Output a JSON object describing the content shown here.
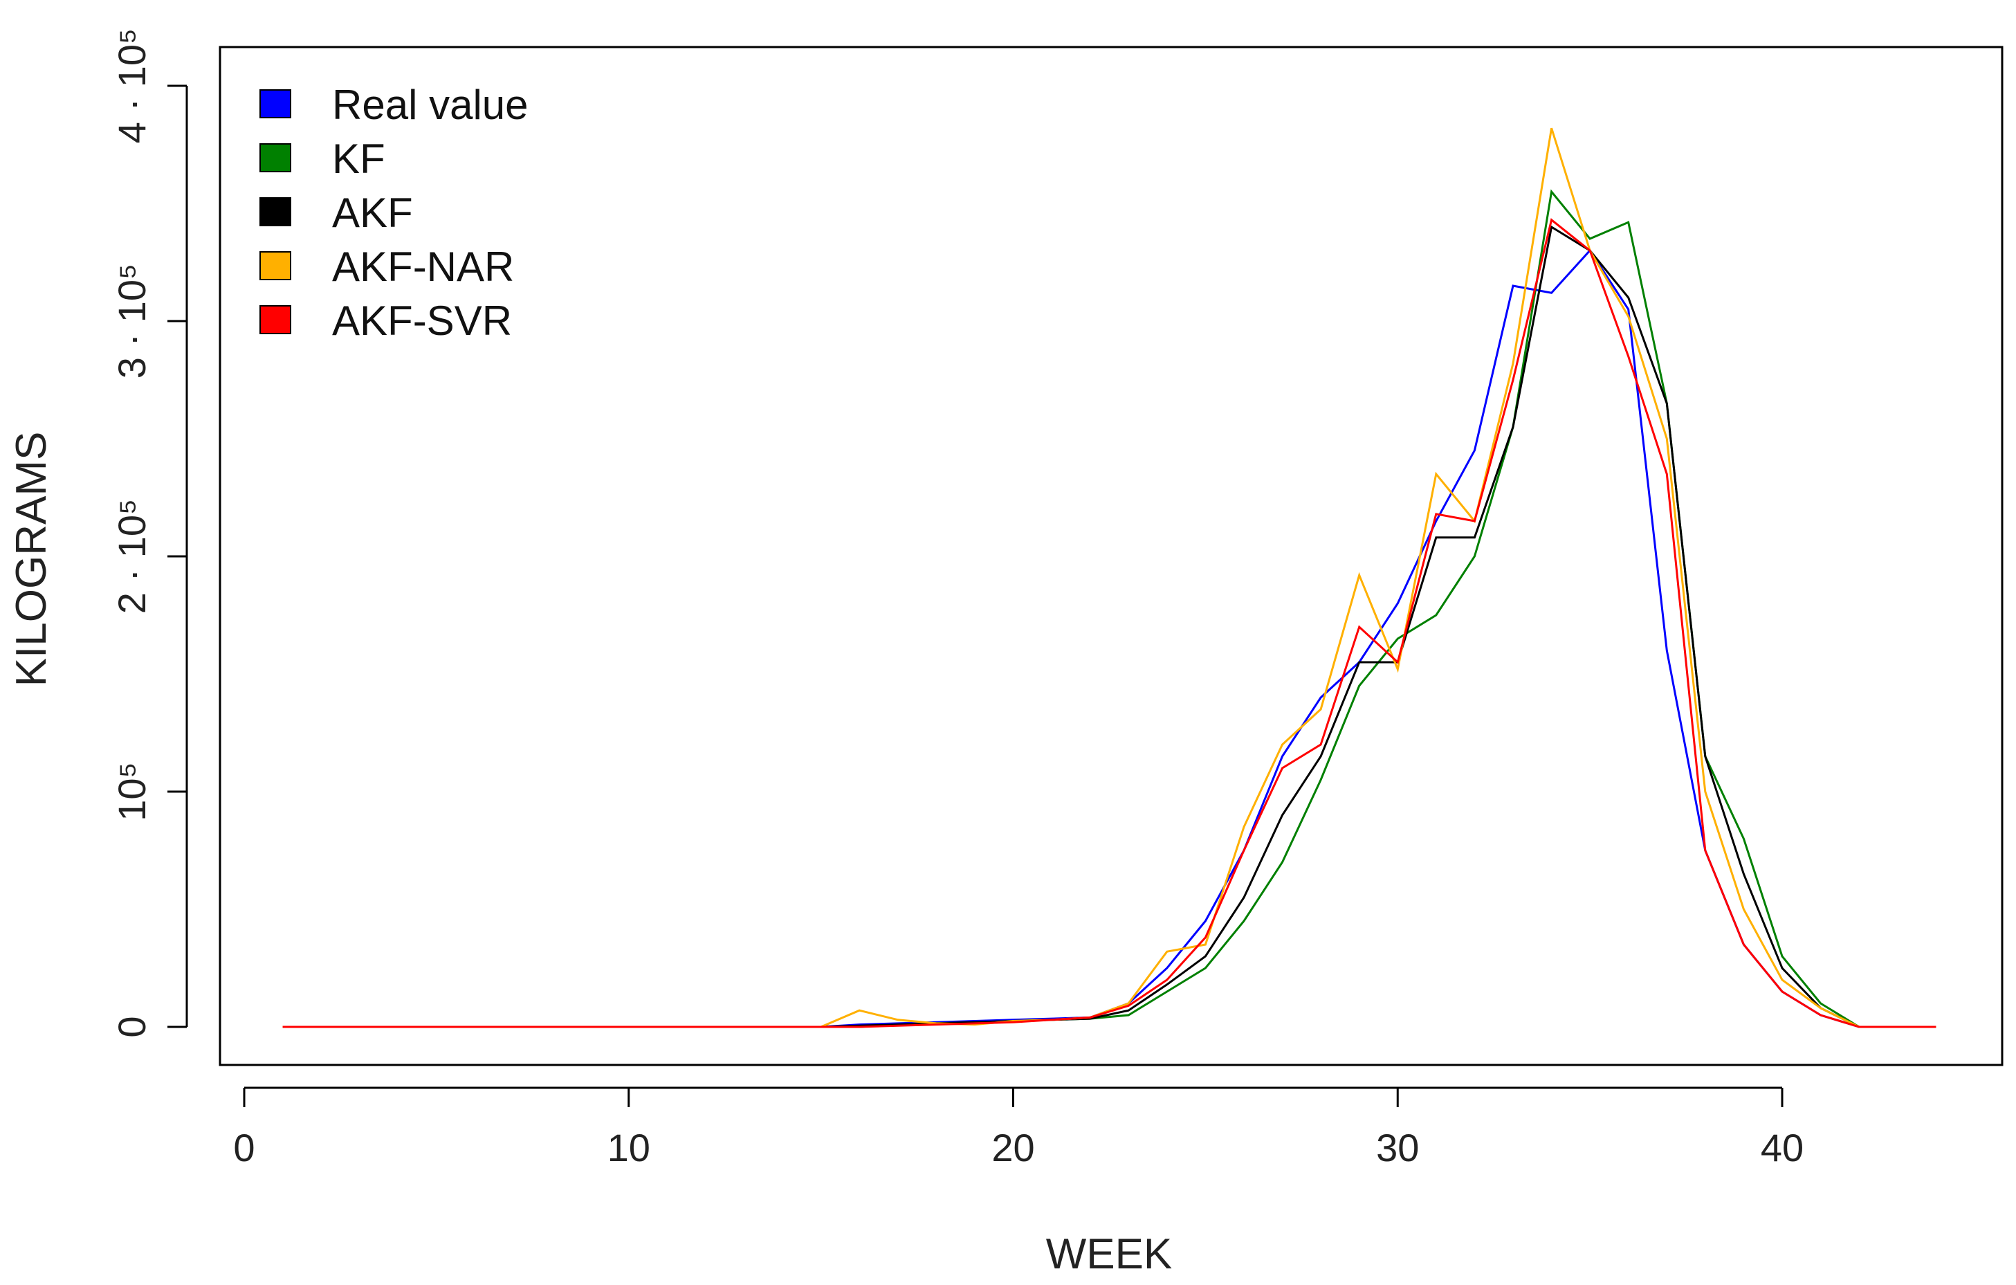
{
  "chart_data": {
    "type": "line",
    "title": "",
    "xlabel": "WEEK",
    "ylabel": "KILOGRAMS",
    "xlim": [
      0,
      45
    ],
    "ylim": [
      0,
      400000
    ],
    "x_ticks": [
      {
        "value": 0,
        "label": "0"
      },
      {
        "value": 10,
        "label": "10"
      },
      {
        "value": 20,
        "label": "20"
      },
      {
        "value": 30,
        "label": "30"
      },
      {
        "value": 40,
        "label": "40"
      }
    ],
    "y_ticks": [
      {
        "value": 0,
        "label": "0"
      },
      {
        "value": 100000,
        "label": "10⁵"
      },
      {
        "value": 200000,
        "label": "2 · 10⁵"
      },
      {
        "value": 300000,
        "label": "3 · 10⁵"
      },
      {
        "value": 400000,
        "label": "4 · 10⁵"
      }
    ],
    "legend_position": "top-left",
    "x": [
      1,
      2,
      3,
      4,
      5,
      6,
      7,
      8,
      9,
      10,
      11,
      12,
      13,
      14,
      15,
      16,
      17,
      18,
      19,
      20,
      21,
      22,
      23,
      24,
      25,
      26,
      27,
      28,
      29,
      30,
      31,
      32,
      33,
      34,
      35,
      36,
      37,
      38,
      39,
      40,
      41,
      42,
      43,
      44
    ],
    "series": [
      {
        "name": "Real value",
        "color": "#0000ff",
        "values": [
          0,
          0,
          0,
          0,
          0,
          0,
          0,
          0,
          0,
          0,
          0,
          0,
          0,
          0,
          0,
          1000,
          1500,
          2000,
          2500,
          3000,
          3500,
          4000,
          10000,
          25000,
          45000,
          75000,
          115000,
          140000,
          155000,
          180000,
          215000,
          245000,
          315000,
          312000,
          330000,
          305000,
          160000,
          75000,
          35000,
          15000,
          5000,
          0,
          0,
          0
        ]
      },
      {
        "name": "KF",
        "color": "#008000",
        "values": [
          0,
          0,
          0,
          0,
          0,
          0,
          0,
          0,
          0,
          0,
          0,
          0,
          0,
          0,
          0,
          0,
          1000,
          1500,
          2000,
          2500,
          3000,
          3500,
          5000,
          15000,
          25000,
          45000,
          70000,
          105000,
          145000,
          165000,
          175000,
          200000,
          255000,
          355000,
          335000,
          342000,
          265000,
          115000,
          80000,
          30000,
          10000,
          0,
          0,
          0
        ]
      },
      {
        "name": "AKF",
        "color": "#000000",
        "values": [
          0,
          0,
          0,
          0,
          0,
          0,
          0,
          0,
          0,
          0,
          0,
          0,
          0,
          0,
          0,
          500,
          1000,
          1500,
          2000,
          2500,
          3000,
          3500,
          7000,
          18000,
          30000,
          55000,
          90000,
          115000,
          155000,
          155000,
          208000,
          208000,
          255000,
          340000,
          330000,
          310000,
          265000,
          115000,
          65000,
          25000,
          8000,
          0,
          0,
          0
        ]
      },
      {
        "name": "AKF-NAR",
        "color": "#ffb000",
        "values": [
          0,
          0,
          0,
          0,
          0,
          0,
          0,
          0,
          0,
          0,
          0,
          0,
          0,
          0,
          0,
          7000,
          3000,
          1500,
          1000,
          2500,
          3000,
          4000,
          10000,
          32000,
          35000,
          85000,
          120000,
          135000,
          192000,
          152000,
          235000,
          215000,
          282000,
          382000,
          330000,
          302000,
          250000,
          100000,
          50000,
          20000,
          8000,
          0,
          0,
          0
        ]
      },
      {
        "name": "AKF-SVR",
        "color": "#ff0000",
        "values": [
          0,
          0,
          0,
          0,
          0,
          0,
          0,
          0,
          0,
          0,
          0,
          0,
          0,
          0,
          0,
          0,
          500,
          1000,
          1500,
          2000,
          3000,
          4000,
          9000,
          20000,
          38000,
          75000,
          110000,
          120000,
          170000,
          155000,
          218000,
          215000,
          275000,
          343000,
          330000,
          285000,
          235000,
          75000,
          35000,
          15000,
          5000,
          0,
          0,
          0
        ]
      }
    ]
  }
}
